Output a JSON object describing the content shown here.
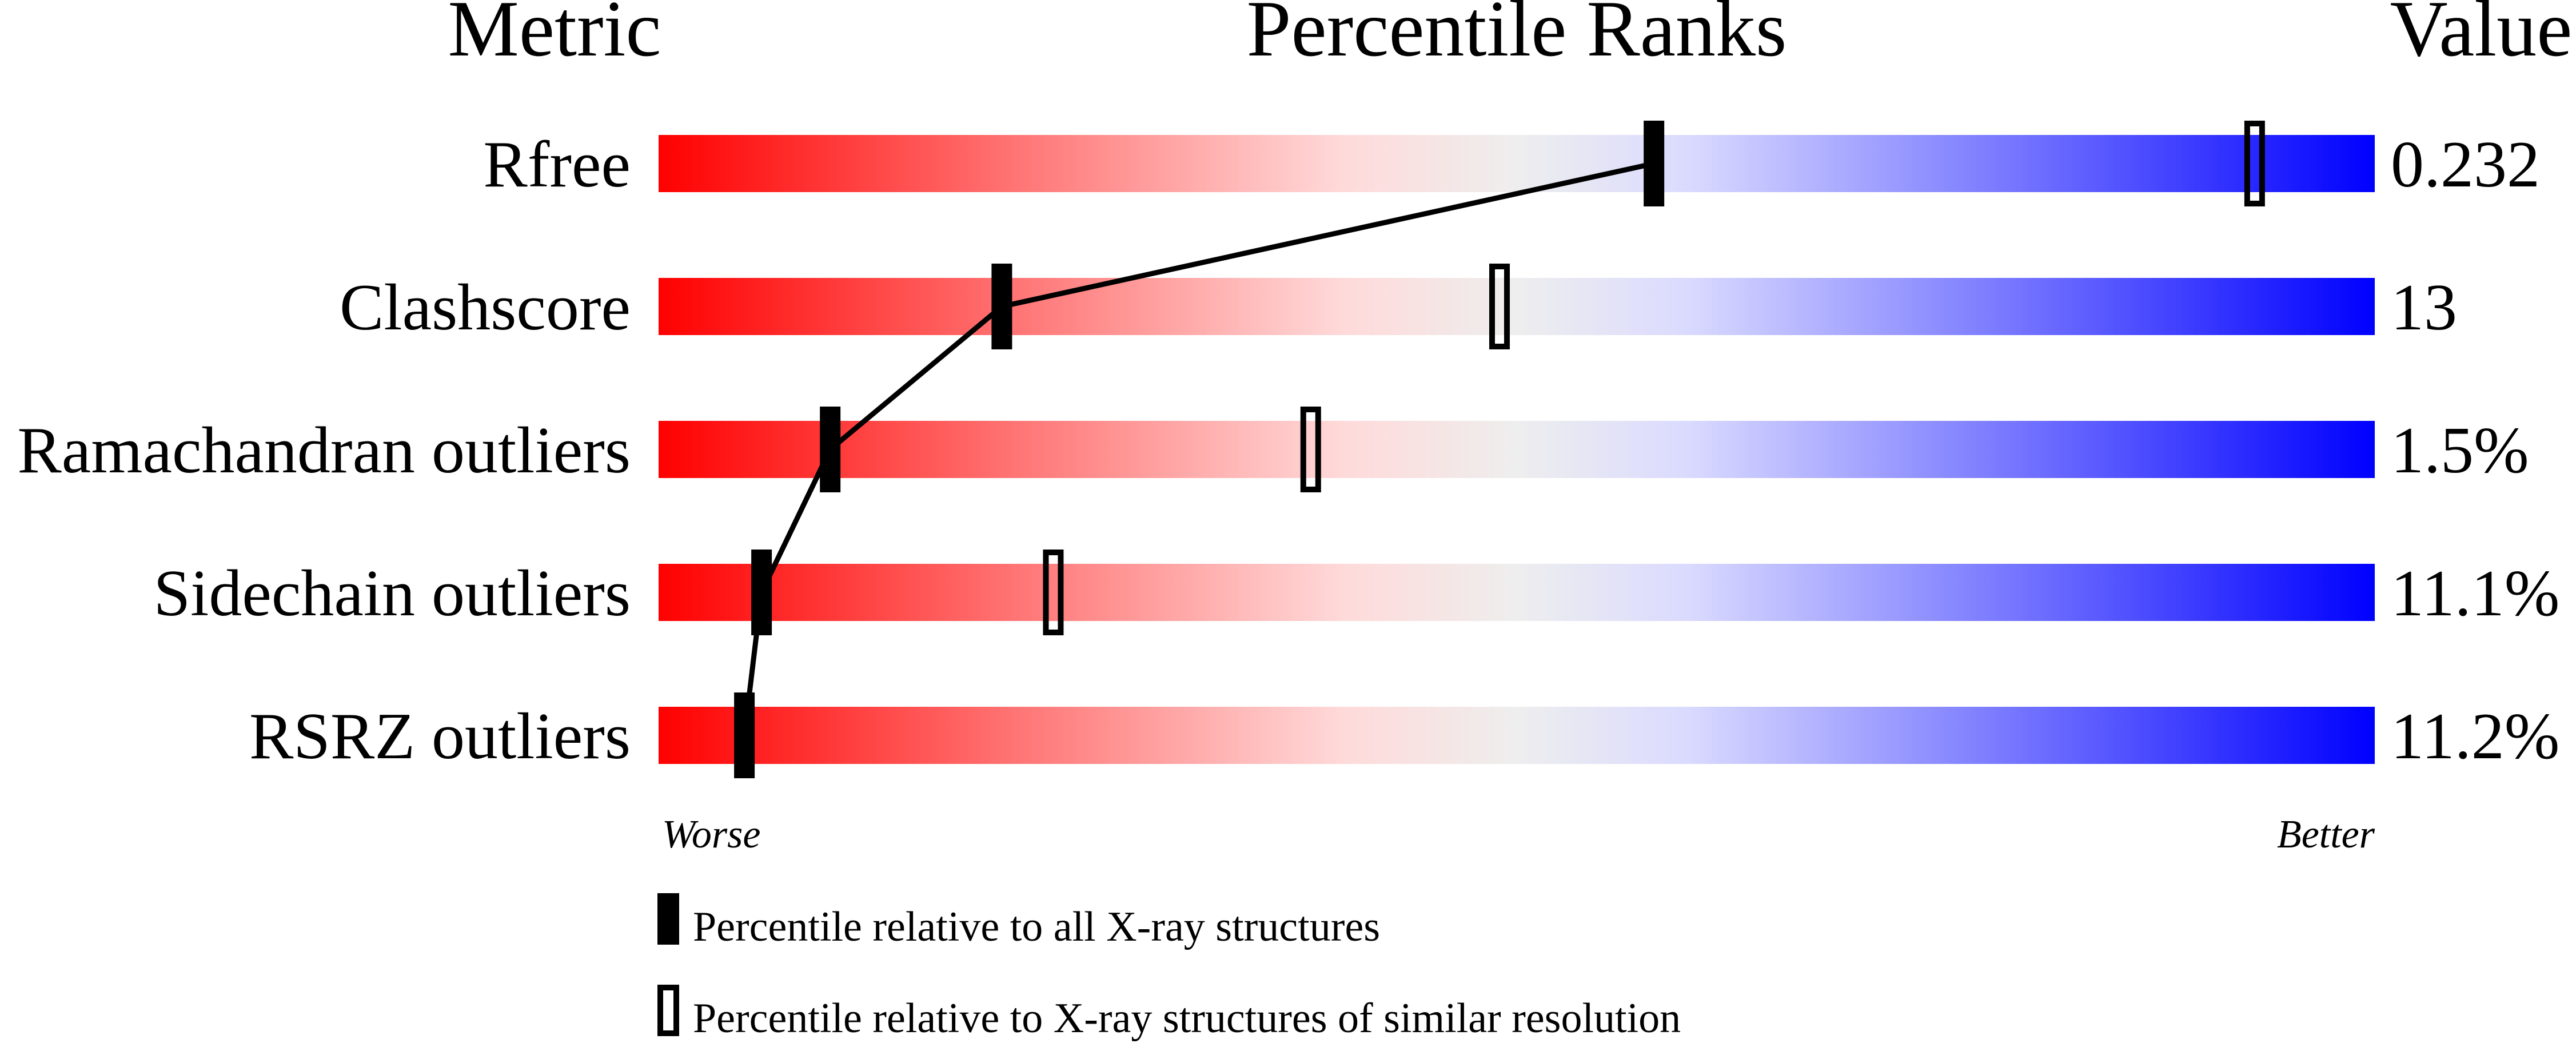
{
  "chart_data": {
    "type": "percentile-slider",
    "headers": {
      "metric": "Metric",
      "ranks": "Percentile Ranks",
      "value": "Value"
    },
    "xlim": [
      0,
      100
    ],
    "scale_labels": {
      "left": "Worse",
      "right": "Better"
    },
    "gradient_colors": [
      "#ff0000",
      "#eeeeee",
      "#0000ff"
    ],
    "rows": [
      {
        "metric": "Rfree",
        "value": "0.232",
        "percentile_all": 58,
        "percentile_similar": 93
      },
      {
        "metric": "Clashscore",
        "value": "13",
        "percentile_all": 20,
        "percentile_similar": 49
      },
      {
        "metric": "Ramachandran outliers",
        "value": "1.5%",
        "percentile_all": 10,
        "percentile_similar": 38
      },
      {
        "metric": "Sidechain outliers",
        "value": "11.1%",
        "percentile_all": 6,
        "percentile_similar": 23
      },
      {
        "metric": "RSRZ outliers",
        "value": "11.2%",
        "percentile_all": 5,
        "percentile_similar": null
      }
    ],
    "legend": [
      {
        "marker": "filled",
        "label": "Percentile relative to all X-ray structures"
      },
      {
        "marker": "hollow",
        "label": "Percentile relative to X-ray structures of similar resolution"
      }
    ]
  }
}
